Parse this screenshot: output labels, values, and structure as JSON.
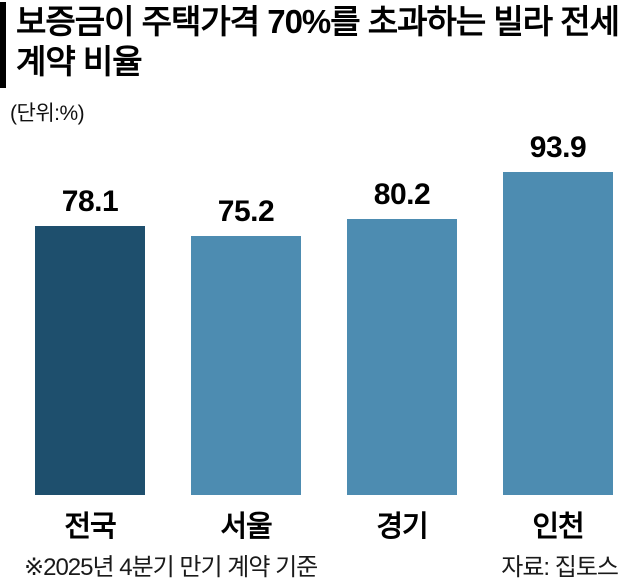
{
  "chart_data": {
    "type": "bar",
    "title": "보증금이 주택가격 70%를 초과하는 빌라 전세계약 비율",
    "unit_label": "(단위:%)",
    "categories": [
      "전국",
      "서울",
      "경기",
      "인천"
    ],
    "values": [
      78.1,
      75.2,
      80.2,
      93.9
    ],
    "ylim": [
      0,
      100
    ],
    "grid": false,
    "legend": "none",
    "bar_colors": [
      "#1e4f6d",
      "#4d8cb1",
      "#4d8cb1",
      "#4d8cb1"
    ],
    "footnote": "※2025년 4분기 만기 계약 기준",
    "source": "자료: 집토스"
  }
}
